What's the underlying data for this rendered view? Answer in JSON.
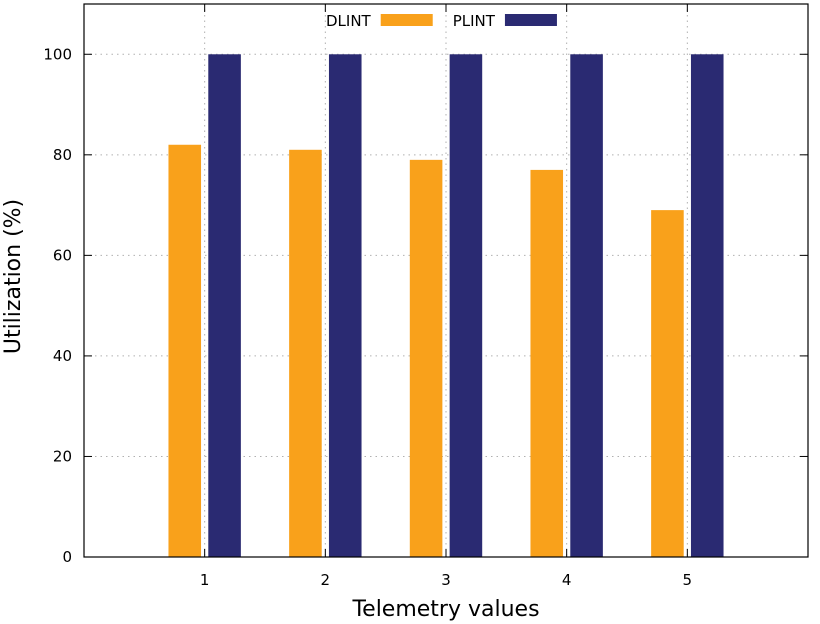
{
  "chart_data": {
    "type": "bar",
    "categories": [
      "1",
      "2",
      "3",
      "4",
      "5"
    ],
    "series": [
      {
        "name": "DLINT",
        "values": [
          82,
          81,
          79,
          77,
          69
        ],
        "color": "#f9a11b"
      },
      {
        "name": "PLINT",
        "values": [
          100,
          100,
          100,
          100,
          100
        ],
        "color": "#2a2a72"
      }
    ],
    "xlabel": "Telemetry values",
    "ylabel": "Utilization (%)",
    "ylim": [
      0,
      110
    ],
    "xlim": [
      0,
      6
    ],
    "yticks": [
      0,
      20,
      40,
      60,
      80,
      100
    ],
    "grid": true,
    "legend_position": "top-center"
  }
}
